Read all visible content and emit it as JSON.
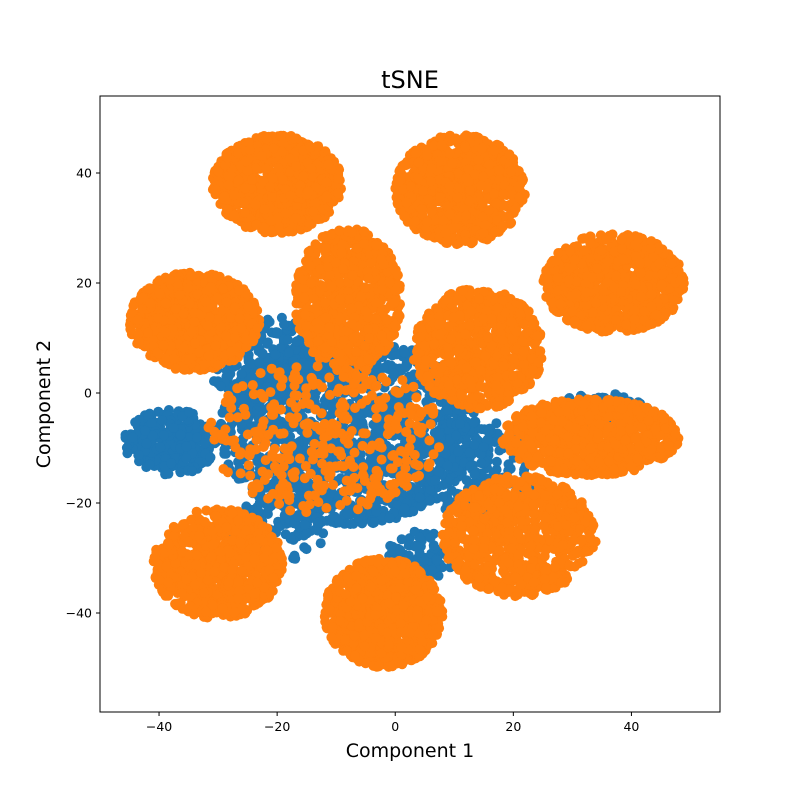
{
  "chart_data": {
    "type": "scatter",
    "title": "tSNE",
    "xlabel": "Component 1",
    "ylabel": "Component 2",
    "xlim": [
      -50,
      55
    ],
    "ylim": [
      -58,
      54
    ],
    "xticks": [
      -40,
      -20,
      0,
      20,
      40
    ],
    "yticks": [
      -40,
      -20,
      0,
      20,
      40
    ],
    "xtick_labels": [
      "−40",
      "−20",
      "0",
      "20",
      "40"
    ],
    "ytick_labels": [
      "−40",
      "−20",
      "0",
      "20",
      "40"
    ],
    "grid": false,
    "series": [
      {
        "color": "#1f77b4",
        "clusters": [
          {
            "cx": -8,
            "cy": -7,
            "rx": 22,
            "ry": 17,
            "n": 1400
          },
          {
            "cx": -38,
            "cy": -9,
            "rx": 8,
            "ry": 6,
            "n": 250
          },
          {
            "cx": -22,
            "cy": 6,
            "rx": 10,
            "ry": 8,
            "n": 200
          },
          {
            "cx": 14,
            "cy": -14,
            "rx": 10,
            "ry": 9,
            "n": 180
          },
          {
            "cx": -20,
            "cy": -25,
            "rx": 8,
            "ry": 6,
            "n": 120
          },
          {
            "cx": 4,
            "cy": -30,
            "rx": 6,
            "ry": 5,
            "n": 80
          },
          {
            "cx": 35,
            "cy": -3,
            "rx": 8,
            "ry": 3,
            "n": 80
          }
        ]
      },
      {
        "color": "#ff7f0e",
        "clusters": [
          {
            "cx": -20,
            "cy": 38,
            "rx": 11,
            "ry": 9,
            "n": 900
          },
          {
            "cx": 11,
            "cy": 37,
            "rx": 11,
            "ry": 10,
            "n": 900
          },
          {
            "cx": 37,
            "cy": 20,
            "rx": 12,
            "ry": 9,
            "n": 900
          },
          {
            "cx": -34,
            "cy": 13,
            "rx": 11,
            "ry": 9,
            "n": 900
          },
          {
            "cx": -8,
            "cy": 17,
            "rx": 9,
            "ry": 13,
            "n": 800
          },
          {
            "cx": 14,
            "cy": 8,
            "rx": 11,
            "ry": 11,
            "n": 800
          },
          {
            "cx": 33,
            "cy": -8,
            "rx": 15,
            "ry": 7,
            "n": 800
          },
          {
            "cx": 21,
            "cy": -26,
            "rx": 13,
            "ry": 11,
            "n": 800
          },
          {
            "cx": -30,
            "cy": -31,
            "rx": 11,
            "ry": 10,
            "n": 800
          },
          {
            "cx": -2,
            "cy": -40,
            "rx": 10,
            "ry": 10,
            "n": 900
          },
          {
            "cx": -12,
            "cy": -8,
            "rx": 20,
            "ry": 14,
            "n": 350
          }
        ]
      }
    ]
  }
}
